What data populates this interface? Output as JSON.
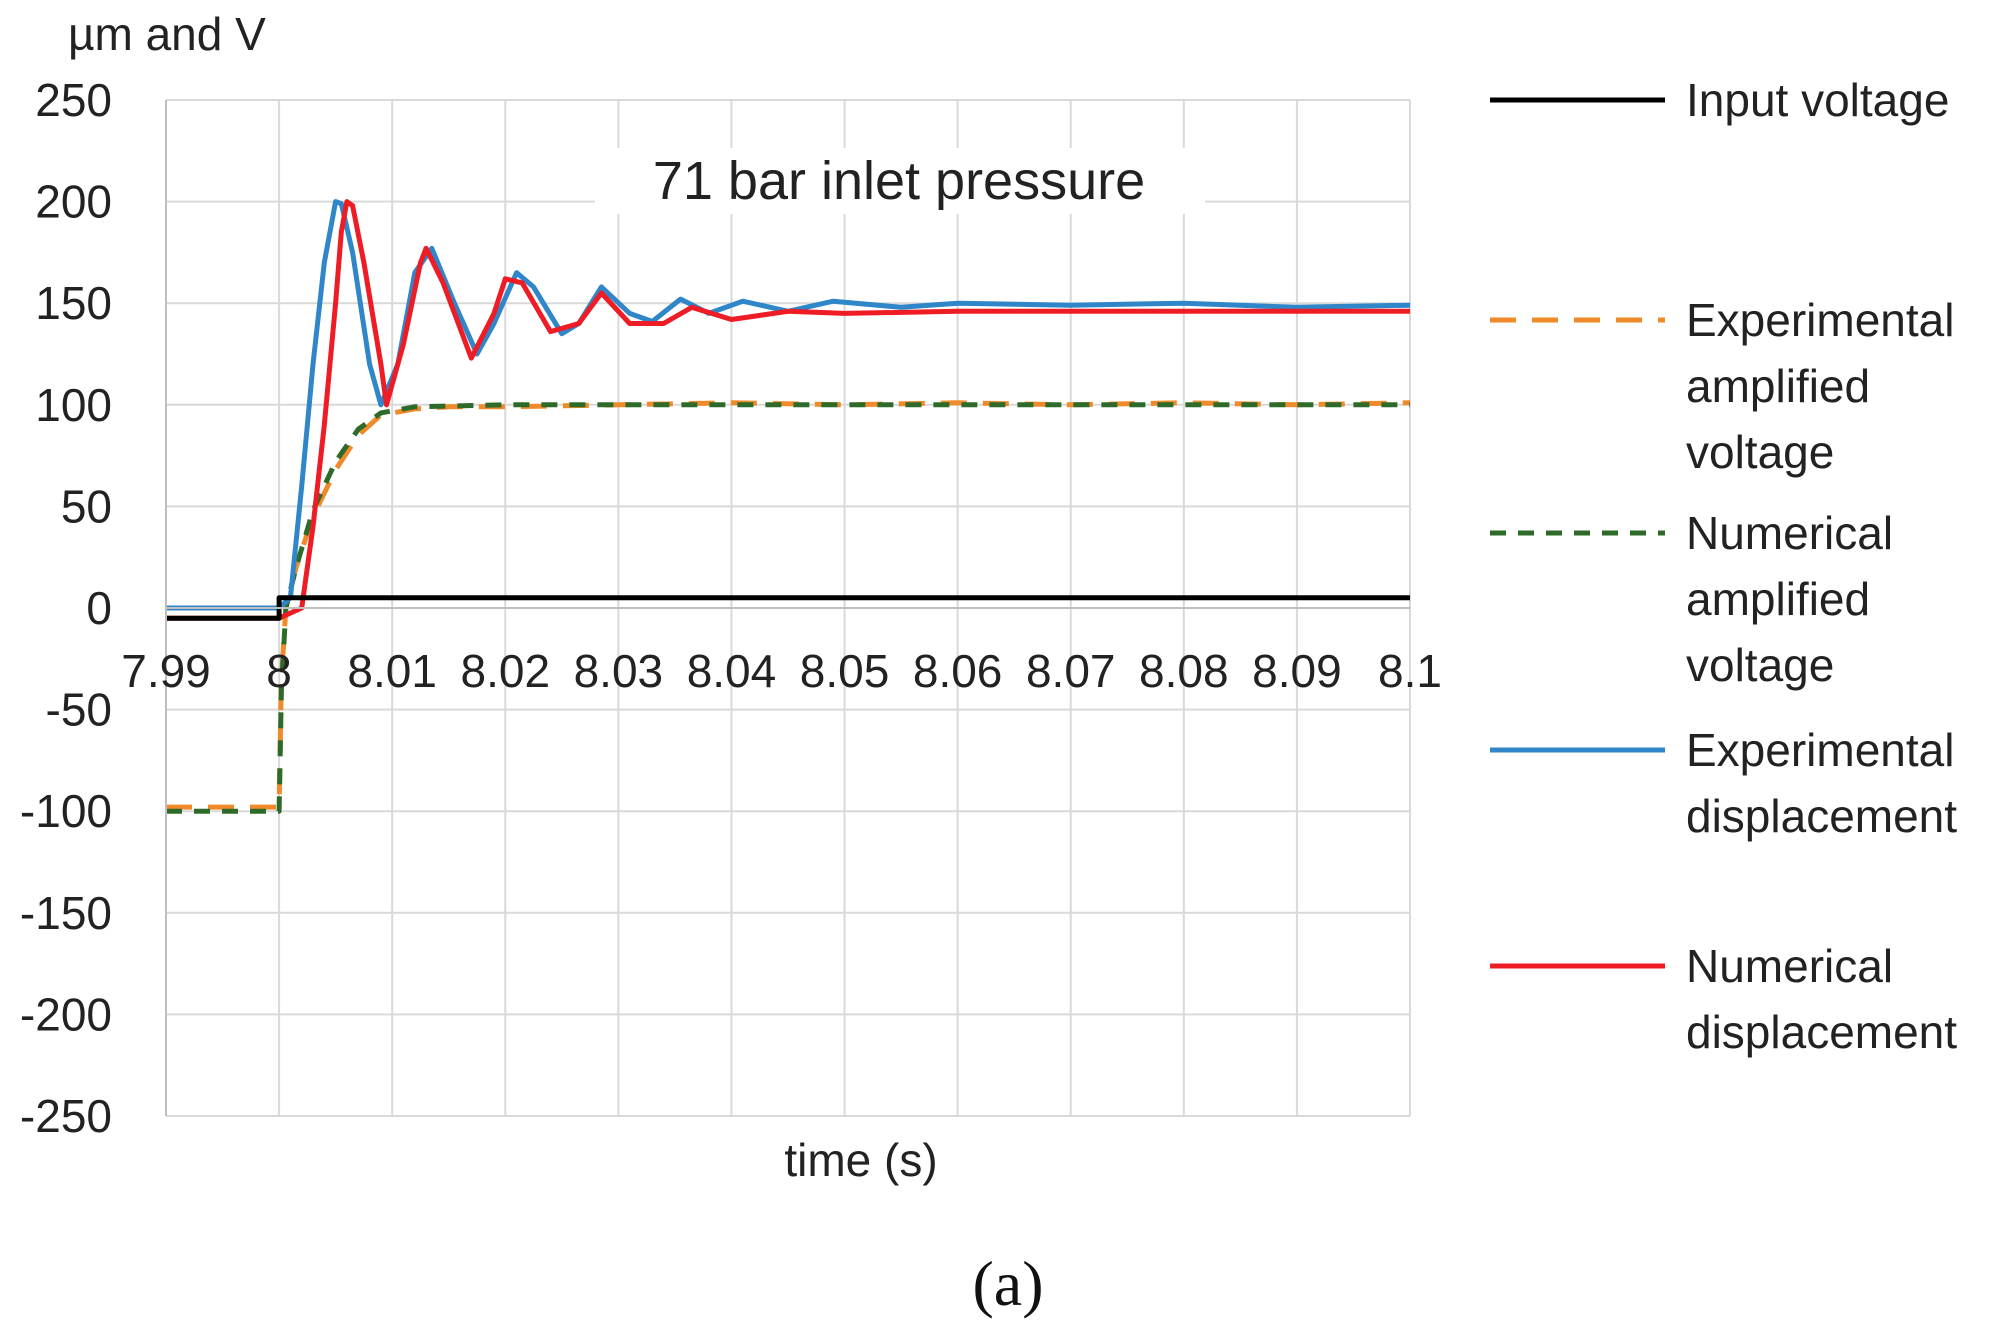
{
  "chart_data": {
    "type": "line",
    "title": "",
    "annotation": "71 bar inlet pressure",
    "ylabel": "µm and V",
    "xlabel": "time (s)",
    "caption_label": "(a)",
    "xlim": [
      7.99,
      8.1
    ],
    "ylim": [
      -250,
      250
    ],
    "grid": true,
    "legend_position": "right",
    "x_ticks": [
      7.99,
      8.0,
      8.01,
      8.02,
      8.03,
      8.04,
      8.05,
      8.06,
      8.07,
      8.08,
      8.09,
      8.1
    ],
    "x_tick_labels": [
      "7.99",
      "8",
      "8.01",
      "8.02",
      "8.03",
      "8.04",
      "8.05",
      "8.06",
      "8.07",
      "8.08",
      "8.09",
      "8.1"
    ],
    "y_ticks": [
      250,
      200,
      150,
      100,
      50,
      0,
      -50,
      -100,
      -150,
      -200,
      -250
    ],
    "y_tick_labels": [
      "250",
      "200",
      "150",
      "100",
      "50",
      "0",
      "-50",
      "-100",
      "-150",
      "-200",
      "-250"
    ],
    "series": [
      {
        "name": "Input voltage",
        "legend_lines": [
          "Input voltage"
        ],
        "color": "#000000",
        "dash": "",
        "points": [
          [
            7.99,
            -5
          ],
          [
            8.0,
            -5
          ],
          [
            8.0,
            5
          ],
          [
            8.1,
            5
          ]
        ]
      },
      {
        "name": "Experimental amplified voltage",
        "legend_lines": [
          "Experimental",
          "amplified",
          "voltage"
        ],
        "color": "#f08a2a",
        "dash": "26,16",
        "points": [
          [
            7.99,
            -98
          ],
          [
            7.997,
            -98
          ],
          [
            8.0,
            -98
          ],
          [
            8.0002,
            -35
          ],
          [
            8.0006,
            0
          ],
          [
            8.0015,
            20
          ],
          [
            8.003,
            45
          ],
          [
            8.005,
            68
          ],
          [
            8.007,
            85
          ],
          [
            8.009,
            95
          ],
          [
            8.012,
            98
          ],
          [
            8.015,
            99
          ],
          [
            8.02,
            99
          ],
          [
            8.03,
            100
          ],
          [
            8.04,
            101
          ],
          [
            8.05,
            100
          ],
          [
            8.06,
            101
          ],
          [
            8.07,
            100
          ],
          [
            8.08,
            101
          ],
          [
            8.09,
            100
          ],
          [
            8.1,
            101
          ]
        ]
      },
      {
        "name": "Numerical amplified voltage",
        "legend_lines": [
          "Numerical",
          "amplified",
          "voltage"
        ],
        "color": "#2e6b2a",
        "dash": "16,12",
        "points": [
          [
            7.99,
            -100
          ],
          [
            8.0,
            -100
          ],
          [
            8.0002,
            -40
          ],
          [
            8.0006,
            0
          ],
          [
            8.0015,
            20
          ],
          [
            8.003,
            48
          ],
          [
            8.005,
            72
          ],
          [
            8.007,
            88
          ],
          [
            8.009,
            96
          ],
          [
            8.012,
            99
          ],
          [
            8.02,
            100
          ],
          [
            8.05,
            100
          ],
          [
            8.1,
            100
          ]
        ]
      },
      {
        "name": "Experimental displacement",
        "legend_lines": [
          "Experimental",
          "displacement"
        ],
        "color": "#2f86c8",
        "dash": "",
        "points": [
          [
            7.99,
            0
          ],
          [
            7.995,
            0
          ],
          [
            8.0,
            0
          ],
          [
            8.001,
            5
          ],
          [
            8.002,
            60
          ],
          [
            8.003,
            120
          ],
          [
            8.004,
            170
          ],
          [
            8.005,
            200
          ],
          [
            8.0055,
            199
          ],
          [
            8.0065,
            175
          ],
          [
            8.008,
            120
          ],
          [
            8.009,
            100
          ],
          [
            8.0105,
            120
          ],
          [
            8.012,
            165
          ],
          [
            8.0135,
            177
          ],
          [
            8.0155,
            150
          ],
          [
            8.0175,
            125
          ],
          [
            8.019,
            140
          ],
          [
            8.021,
            165
          ],
          [
            8.0225,
            158
          ],
          [
            8.025,
            135
          ],
          [
            8.0265,
            140
          ],
          [
            8.0285,
            158
          ],
          [
            8.031,
            145
          ],
          [
            8.033,
            141
          ],
          [
            8.0355,
            152
          ],
          [
            8.038,
            145
          ],
          [
            8.041,
            151
          ],
          [
            8.045,
            146
          ],
          [
            8.049,
            151
          ],
          [
            8.055,
            148
          ],
          [
            8.06,
            150
          ],
          [
            8.07,
            149
          ],
          [
            8.08,
            150
          ],
          [
            8.09,
            148
          ],
          [
            8.1,
            149
          ]
        ]
      },
      {
        "name": "Numerical displacement",
        "legend_lines": [
          "Numerical",
          "displacement"
        ],
        "color": "#ee1c25",
        "dash": "",
        "points": [
          [
            7.99,
            -5
          ],
          [
            8.0,
            -5
          ],
          [
            8.002,
            0
          ],
          [
            8.003,
            40
          ],
          [
            8.004,
            90
          ],
          [
            8.005,
            150
          ],
          [
            8.0055,
            185
          ],
          [
            8.006,
            200
          ],
          [
            8.0065,
            198
          ],
          [
            8.0075,
            170
          ],
          [
            8.009,
            120
          ],
          [
            8.0095,
            100
          ],
          [
            8.011,
            130
          ],
          [
            8.0125,
            170
          ],
          [
            8.013,
            177
          ],
          [
            8.0145,
            160
          ],
          [
            8.017,
            123
          ],
          [
            8.019,
            145
          ],
          [
            8.02,
            162
          ],
          [
            8.0215,
            160
          ],
          [
            8.024,
            136
          ],
          [
            8.0265,
            140
          ],
          [
            8.0285,
            155
          ],
          [
            8.031,
            140
          ],
          [
            8.034,
            140
          ],
          [
            8.0365,
            148
          ],
          [
            8.04,
            142
          ],
          [
            8.045,
            146
          ],
          [
            8.05,
            145
          ],
          [
            8.06,
            146
          ],
          [
            8.08,
            146
          ],
          [
            8.1,
            146
          ]
        ]
      }
    ]
  }
}
